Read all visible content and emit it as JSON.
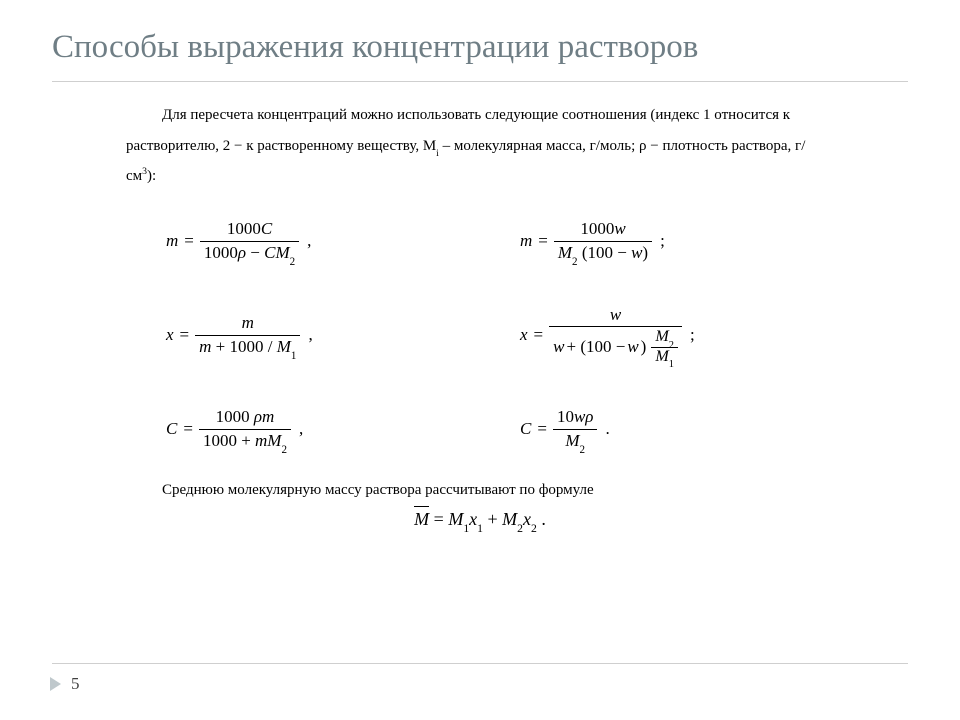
{
  "title_fontsize": 33,
  "title_color": "#6f7e85",
  "body_fontsize": 15,
  "eq_fontsize": 17,
  "background_color": "#ffffff",
  "divider_color": "#cfcfcf",
  "page_number": "5",
  "arrow_color": "#bfc8cc",
  "title": "Способы выражения концентрации растворов",
  "intro": "Для пересчета концентраций можно использовать следующие соотношения (индекс 1 относится к растворителю, 2 − к растворенному веществу, Mᵢ – молекулярная масса, г/моль; ρ − плотность раствора, г/см³):",
  "formulas": {
    "r1c1": {
      "lhs": "m",
      "num": "1000C",
      "den": "1000ρ − CM₂",
      "punct": ","
    },
    "r1c2": {
      "lhs": "m",
      "num": "1000w",
      "den": "M₂ (100 − w)",
      "punct": ";"
    },
    "r2c1": {
      "lhs": "x",
      "num": "m",
      "den": "m + 1000 / M₁",
      "punct": ","
    },
    "r2c2": {
      "lhs": "x",
      "num": "w",
      "den": "w + (100 − w) · M₂/M₁",
      "punct": ";"
    },
    "r3c1": {
      "lhs": "C",
      "num": "1000 ρm",
      "den": "1000 + mM₂",
      "punct": ","
    },
    "r3c2": {
      "lhs": "C",
      "num": "10wρ",
      "den": "M₂",
      "punct": "."
    }
  },
  "avg_text": "Среднюю молекулярную массу раствора рассчитывают по формуле",
  "avg_formula": "M̅ = M₁x₁ + M₂x₂ ."
}
